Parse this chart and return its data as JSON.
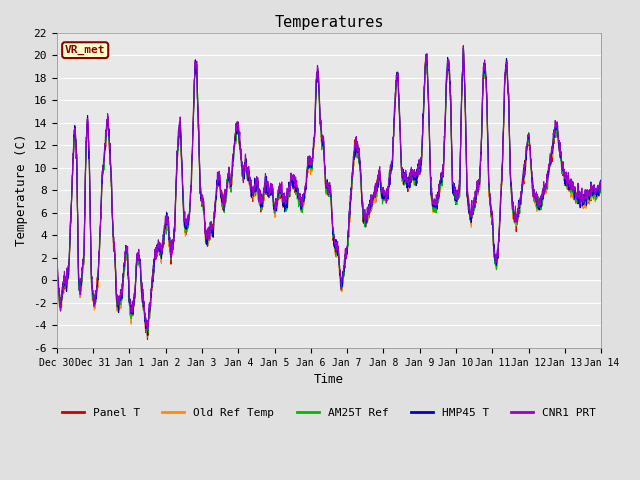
{
  "title": "Temperatures",
  "xlabel": "Time",
  "ylabel": "Temperature (C)",
  "ylim": [
    -6,
    22
  ],
  "yticks": [
    -6,
    -4,
    -2,
    0,
    2,
    4,
    6,
    8,
    10,
    12,
    14,
    16,
    18,
    20,
    22
  ],
  "annotation_text": "VR_met",
  "annotation_color": "#8B0000",
  "annotation_bg": "#FFFFCC",
  "annotation_border": "#8B0000",
  "bg_color": "#E0E0E0",
  "plot_bg": "#E8E8E8",
  "series": [
    {
      "label": "Panel T",
      "color": "#CC0000"
    },
    {
      "label": "Old Ref Temp",
      "color": "#FF8C00"
    },
    {
      "label": "AM25T Ref",
      "color": "#00BB00"
    },
    {
      "label": "HMP45 T",
      "color": "#0000CC"
    },
    {
      "label": "CNR1 PRT",
      "color": "#9900CC"
    }
  ],
  "x_tick_days": [
    0,
    1,
    2,
    3,
    4,
    5,
    6,
    7,
    8,
    9,
    10,
    11,
    12,
    13,
    14,
    15
  ],
  "x_tick_labels": [
    "Dec 30",
    "Dec 31",
    "Jan 1",
    "Jan 2",
    "Jan 3",
    "Jan 4",
    "Jan 5",
    "Jan 6",
    "Jan 7",
    "Jan 8",
    "Jan 9",
    "Jan 10",
    "Jan 11",
    "Jan 12",
    "Jan 13",
    "Jan 14"
  ],
  "font_family": "monospace",
  "linewidth": 0.8,
  "legend_ncol": 5,
  "control_points": [
    [
      0.0,
      1.5
    ],
    [
      0.05,
      -1.0
    ],
    [
      0.1,
      -2.5
    ],
    [
      0.2,
      0.0
    ],
    [
      0.28,
      -0.5
    ],
    [
      0.35,
      2.0
    ],
    [
      0.45,
      11.0
    ],
    [
      0.5,
      13.5
    ],
    [
      0.55,
      10.5
    ],
    [
      0.6,
      0.0
    ],
    [
      0.65,
      -1.5
    ],
    [
      0.7,
      0.5
    ],
    [
      0.75,
      2.0
    ],
    [
      0.8,
      11.0
    ],
    [
      0.85,
      14.5
    ],
    [
      0.9,
      10.0
    ],
    [
      0.95,
      0.0
    ],
    [
      1.0,
      -1.5
    ],
    [
      1.05,
      -2.0
    ],
    [
      1.1,
      -1.0
    ],
    [
      1.15,
      1.0
    ],
    [
      1.2,
      4.5
    ],
    [
      1.25,
      9.0
    ],
    [
      1.3,
      10.5
    ],
    [
      1.35,
      12.5
    ],
    [
      1.4,
      14.5
    ],
    [
      1.45,
      12.0
    ],
    [
      1.5,
      9.0
    ],
    [
      1.55,
      4.0
    ],
    [
      1.6,
      2.0
    ],
    [
      1.65,
      -2.0
    ],
    [
      1.7,
      -2.5
    ],
    [
      1.75,
      -2.0
    ],
    [
      1.8,
      -1.5
    ],
    [
      1.85,
      1.0
    ],
    [
      1.9,
      2.5
    ],
    [
      1.95,
      2.0
    ],
    [
      2.0,
      -2.0
    ],
    [
      2.05,
      -3.0
    ],
    [
      2.1,
      -2.5
    ],
    [
      2.15,
      -1.5
    ],
    [
      2.2,
      1.5
    ],
    [
      2.25,
      2.0
    ],
    [
      2.3,
      1.5
    ],
    [
      2.35,
      -1.5
    ],
    [
      2.4,
      -2.5
    ],
    [
      2.45,
      -4.0
    ],
    [
      2.5,
      -4.5
    ],
    [
      2.55,
      -3.0
    ],
    [
      2.6,
      -1.5
    ],
    [
      2.7,
      2.0
    ],
    [
      2.8,
      3.0
    ],
    [
      2.9,
      2.5
    ],
    [
      3.0,
      5.0
    ],
    [
      3.05,
      5.5
    ],
    [
      3.1,
      3.5
    ],
    [
      3.15,
      2.5
    ],
    [
      3.2,
      3.0
    ],
    [
      3.25,
      4.5
    ],
    [
      3.3,
      9.5
    ],
    [
      3.35,
      12.5
    ],
    [
      3.4,
      14.0
    ],
    [
      3.5,
      5.5
    ],
    [
      3.55,
      4.5
    ],
    [
      3.6,
      5.0
    ],
    [
      3.65,
      5.5
    ],
    [
      3.7,
      8.0
    ],
    [
      3.75,
      13.0
    ],
    [
      3.8,
      18.5
    ],
    [
      3.85,
      19.0
    ],
    [
      3.9,
      14.0
    ],
    [
      3.95,
      8.0
    ],
    [
      4.0,
      7.0
    ],
    [
      4.05,
      6.5
    ],
    [
      4.1,
      3.5
    ],
    [
      4.15,
      3.5
    ],
    [
      4.2,
      4.0
    ],
    [
      4.25,
      4.5
    ],
    [
      4.3,
      4.0
    ],
    [
      4.35,
      6.0
    ],
    [
      4.4,
      7.5
    ],
    [
      4.45,
      9.0
    ],
    [
      4.5,
      8.5
    ],
    [
      4.55,
      7.0
    ],
    [
      4.6,
      6.5
    ],
    [
      4.65,
      7.0
    ],
    [
      4.7,
      8.5
    ],
    [
      4.75,
      9.5
    ],
    [
      4.8,
      8.0
    ],
    [
      4.85,
      10.5
    ],
    [
      4.9,
      12.0
    ],
    [
      4.95,
      13.5
    ],
    [
      5.0,
      13.5
    ],
    [
      5.05,
      12.0
    ],
    [
      5.1,
      10.0
    ],
    [
      5.15,
      9.0
    ],
    [
      5.2,
      10.5
    ],
    [
      5.25,
      9.5
    ],
    [
      5.3,
      9.0
    ],
    [
      5.35,
      8.0
    ],
    [
      5.4,
      7.5
    ],
    [
      5.45,
      8.0
    ],
    [
      5.5,
      8.5
    ],
    [
      5.55,
      8.0
    ],
    [
      5.6,
      7.0
    ],
    [
      5.65,
      6.5
    ],
    [
      5.7,
      7.5
    ],
    [
      5.75,
      8.5
    ],
    [
      5.8,
      8.0
    ],
    [
      5.85,
      7.5
    ],
    [
      5.9,
      8.0
    ],
    [
      5.95,
      7.5
    ],
    [
      6.0,
      6.0
    ],
    [
      6.05,
      6.5
    ],
    [
      6.1,
      7.5
    ],
    [
      6.15,
      8.0
    ],
    [
      6.2,
      7.5
    ],
    [
      6.25,
      7.0
    ],
    [
      6.3,
      6.5
    ],
    [
      6.35,
      7.0
    ],
    [
      6.4,
      8.0
    ],
    [
      6.45,
      8.5
    ],
    [
      6.5,
      9.0
    ],
    [
      6.55,
      8.5
    ],
    [
      6.6,
      8.0
    ],
    [
      6.65,
      7.5
    ],
    [
      6.7,
      7.0
    ],
    [
      6.75,
      6.5
    ],
    [
      6.8,
      7.0
    ],
    [
      6.85,
      8.0
    ],
    [
      6.9,
      9.5
    ],
    [
      6.95,
      10.5
    ],
    [
      7.0,
      10.0
    ],
    [
      7.05,
      10.5
    ],
    [
      7.1,
      12.5
    ],
    [
      7.15,
      17.5
    ],
    [
      7.2,
      18.5
    ],
    [
      7.25,
      14.5
    ],
    [
      7.3,
      12.5
    ],
    [
      7.35,
      12.0
    ],
    [
      7.4,
      8.5
    ],
    [
      7.45,
      8.0
    ],
    [
      7.5,
      8.0
    ],
    [
      7.55,
      7.5
    ],
    [
      7.6,
      4.5
    ],
    [
      7.65,
      3.0
    ],
    [
      7.7,
      2.5
    ],
    [
      7.75,
      2.5
    ],
    [
      7.8,
      0.5
    ],
    [
      7.85,
      -0.5
    ],
    [
      7.9,
      0.5
    ],
    [
      7.95,
      2.0
    ],
    [
      8.0,
      2.5
    ],
    [
      8.05,
      5.0
    ],
    [
      8.1,
      7.5
    ],
    [
      8.15,
      9.5
    ],
    [
      8.2,
      11.0
    ],
    [
      8.25,
      12.0
    ],
    [
      8.3,
      11.5
    ],
    [
      8.35,
      10.5
    ],
    [
      8.4,
      7.5
    ],
    [
      8.45,
      5.5
    ],
    [
      8.5,
      5.0
    ],
    [
      8.55,
      5.5
    ],
    [
      8.6,
      6.0
    ],
    [
      8.65,
      6.5
    ],
    [
      8.7,
      7.0
    ],
    [
      8.75,
      7.5
    ],
    [
      8.8,
      8.0
    ],
    [
      8.85,
      8.5
    ],
    [
      8.9,
      9.5
    ],
    [
      8.95,
      7.5
    ],
    [
      9.0,
      7.5
    ],
    [
      9.05,
      7.5
    ],
    [
      9.1,
      7.0
    ],
    [
      9.15,
      8.5
    ],
    [
      9.2,
      9.5
    ],
    [
      9.25,
      10.5
    ],
    [
      9.3,
      14.5
    ],
    [
      9.35,
      17.5
    ],
    [
      9.4,
      18.0
    ],
    [
      9.45,
      14.0
    ],
    [
      9.5,
      9.5
    ],
    [
      9.55,
      9.0
    ],
    [
      9.6,
      9.0
    ],
    [
      9.65,
      8.5
    ],
    [
      9.7,
      8.5
    ],
    [
      9.75,
      9.0
    ],
    [
      9.8,
      9.5
    ],
    [
      9.85,
      9.0
    ],
    [
      9.9,
      9.0
    ],
    [
      9.95,
      9.5
    ],
    [
      10.0,
      10.0
    ],
    [
      10.05,
      10.5
    ],
    [
      10.1,
      14.5
    ],
    [
      10.15,
      19.0
    ],
    [
      10.2,
      19.5
    ],
    [
      10.25,
      15.0
    ],
    [
      10.3,
      8.5
    ],
    [
      10.35,
      7.0
    ],
    [
      10.4,
      6.5
    ],
    [
      10.45,
      6.5
    ],
    [
      10.5,
      7.0
    ],
    [
      10.55,
      8.0
    ],
    [
      10.6,
      9.0
    ],
    [
      10.65,
      9.5
    ],
    [
      10.7,
      14.0
    ],
    [
      10.75,
      18.5
    ],
    [
      10.8,
      19.5
    ],
    [
      10.85,
      16.0
    ],
    [
      10.9,
      8.5
    ],
    [
      10.95,
      7.5
    ],
    [
      11.0,
      7.0
    ],
    [
      11.05,
      7.5
    ],
    [
      11.1,
      8.0
    ],
    [
      11.15,
      15.5
    ],
    [
      11.2,
      20.5
    ],
    [
      11.25,
      16.0
    ],
    [
      11.3,
      8.0
    ],
    [
      11.35,
      6.5
    ],
    [
      11.4,
      5.5
    ],
    [
      11.45,
      6.0
    ],
    [
      11.5,
      6.5
    ],
    [
      11.55,
      7.5
    ],
    [
      11.6,
      8.0
    ],
    [
      11.65,
      8.5
    ],
    [
      11.7,
      12.5
    ],
    [
      11.75,
      18.0
    ],
    [
      11.8,
      19.0
    ],
    [
      11.85,
      16.0
    ],
    [
      11.9,
      8.5
    ],
    [
      11.95,
      6.5
    ],
    [
      12.0,
      5.5
    ],
    [
      12.05,
      2.0
    ],
    [
      12.1,
      1.5
    ],
    [
      12.15,
      2.0
    ],
    [
      12.2,
      5.0
    ],
    [
      12.25,
      8.0
    ],
    [
      12.3,
      12.5
    ],
    [
      12.35,
      18.5
    ],
    [
      12.4,
      19.0
    ],
    [
      12.45,
      16.0
    ],
    [
      12.5,
      9.0
    ],
    [
      12.55,
      6.5
    ],
    [
      12.6,
      5.5
    ],
    [
      12.65,
      5.0
    ],
    [
      12.7,
      5.5
    ],
    [
      12.75,
      6.5
    ],
    [
      12.8,
      7.5
    ],
    [
      12.85,
      9.0
    ],
    [
      12.9,
      10.0
    ],
    [
      12.95,
      11.5
    ],
    [
      13.0,
      13.0
    ],
    [
      13.05,
      11.0
    ],
    [
      13.1,
      8.5
    ],
    [
      13.15,
      7.5
    ],
    [
      13.2,
      7.0
    ],
    [
      13.25,
      6.5
    ],
    [
      13.3,
      6.5
    ],
    [
      13.35,
      7.0
    ],
    [
      13.4,
      7.5
    ],
    [
      13.45,
      8.0
    ],
    [
      13.5,
      8.5
    ],
    [
      13.55,
      9.5
    ],
    [
      13.6,
      10.5
    ],
    [
      13.65,
      11.5
    ],
    [
      13.7,
      13.0
    ],
    [
      13.75,
      13.5
    ],
    [
      13.8,
      13.0
    ],
    [
      13.85,
      11.5
    ],
    [
      13.9,
      10.5
    ],
    [
      13.95,
      9.5
    ],
    [
      14.0,
      9.0
    ],
    [
      14.1,
      8.5
    ],
    [
      14.2,
      8.0
    ],
    [
      14.3,
      7.5
    ],
    [
      14.5,
      7.0
    ],
    [
      14.7,
      7.5
    ],
    [
      15.0,
      8.0
    ]
  ]
}
